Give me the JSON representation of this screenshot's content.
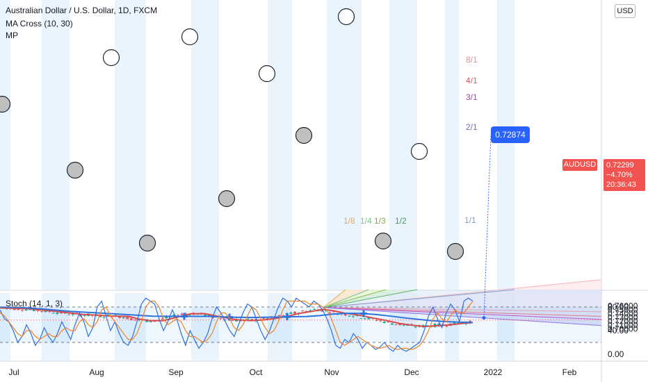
{
  "header": {
    "title": "Australian Dollar / U.S. Dollar, 1D, FXCM",
    "indicator_ma": "MA Cross (10, 30)",
    "indicator_mp": "MP",
    "currency_badge": "USD"
  },
  "stoch": {
    "label": "Stoch (14, 1, 3)",
    "upper": 80,
    "lower": 20
  },
  "quote": {
    "symbol": "AUDUSD",
    "price": "0.72299",
    "change": "−4.70%",
    "countdown": "20:36:43",
    "marker_price": "0.72874"
  },
  "colors": {
    "candle_up": "#26a69a",
    "candle_down": "#ef5350",
    "ma_fast": "#e8453c",
    "ma_slow": "#2f6fde",
    "stoch_k": "#2f6fde",
    "stoch_d": "#f0832a",
    "cross_marker": "#2f6fde"
  },
  "chart_data": [
    {
      "type": "candlestick",
      "title": "Australian Dollar / U.S. Dollar, 1D, FXCM",
      "y_ticks": [
        "0.76000",
        "0.75000",
        "0.74000",
        "0.73000",
        "0.72000",
        "0.71000",
        "0.70000"
      ],
      "x_ticks": [
        "Jul",
        "Aug",
        "Sep",
        "Oct",
        "Nov",
        "Dec",
        "2022",
        "Feb"
      ],
      "ylim": [
        0.6935,
        0.7624
      ],
      "last_price": 0.72299,
      "series": [
        {
          "name": "MA Cross (10, 30) fast",
          "points": [
            [
              0,
              0.7545
            ],
            [
              40,
              0.7525
            ],
            [
              80,
              0.7455
            ],
            [
              120,
              0.7375
            ],
            [
              160,
              0.7335
            ],
            [
              185,
              0.7325
            ],
            [
              200,
              0.7255
            ],
            [
              215,
              0.7215
            ],
            [
              235,
              0.7215
            ],
            [
              255,
              0.7305
            ],
            [
              275,
              0.7395
            ],
            [
              295,
              0.7395
            ],
            [
              315,
              0.732
            ],
            [
              340,
              0.724
            ],
            [
              360,
              0.7215
            ],
            [
              380,
              0.7235
            ],
            [
              400,
              0.728
            ],
            [
              415,
              0.7335
            ],
            [
              430,
              0.74
            ],
            [
              450,
              0.746
            ],
            [
              465,
              0.751
            ],
            [
              480,
              0.747
            ],
            [
              495,
              0.741
            ],
            [
              515,
              0.736
            ],
            [
              535,
              0.729
            ],
            [
              555,
              0.722
            ],
            [
              575,
              0.714
            ],
            [
              595,
              0.709
            ],
            [
              610,
              0.706
            ],
            [
              625,
              0.708
            ],
            [
              640,
              0.7095
            ],
            [
              655,
              0.712
            ],
            [
              670,
              0.715
            ],
            [
              680,
              0.7165
            ]
          ]
        },
        {
          "name": "MA Cross (10, 30) slow",
          "points": [
            [
              0,
              0.7565
            ],
            [
              30,
              0.7555
            ],
            [
              60,
              0.752
            ],
            [
              100,
              0.7455
            ],
            [
              140,
              0.7415
            ],
            [
              180,
              0.7375
            ],
            [
              220,
              0.733
            ],
            [
              250,
              0.7325
            ],
            [
              300,
              0.7325
            ],
            [
              330,
              0.7305
            ],
            [
              360,
              0.7295
            ],
            [
              390,
              0.7305
            ],
            [
              420,
              0.7315
            ],
            [
              440,
              0.732
            ],
            [
              460,
              0.7345
            ],
            [
              480,
              0.7385
            ],
            [
              500,
              0.7405
            ],
            [
              520,
              0.74
            ],
            [
              540,
              0.7375
            ],
            [
              560,
              0.7335
            ],
            [
              580,
              0.729
            ],
            [
              600,
              0.725
            ],
            [
              620,
              0.7215
            ],
            [
              640,
              0.719
            ],
            [
              660,
              0.7175
            ],
            [
              680,
              0.7165
            ]
          ]
        }
      ],
      "ma_cross_x": [
        265,
        330,
        413,
        523
      ],
      "gann_fan": {
        "origin": {
          "x": 465,
          "y": 0.7555
        },
        "upper_angles": [
          {
            "label": "8/1",
            "y_at_865": 0.7445
          },
          {
            "label": "4/1",
            "y_at_865": 0.7325
          },
          {
            "label": "3/1",
            "y_at_865": 0.7245
          },
          {
            "label": "2/1",
            "y_at_865": 0.7085
          }
        ],
        "lower_labels": [
          "1/1",
          "1/2",
          "1/3",
          "1/4",
          "1/8"
        ],
        "marker": {
          "x": 696,
          "y": 0.7287,
          "label": "0.72874"
        }
      },
      "bands_x": [
        [
          0,
          15
        ],
        [
          60,
          100
        ],
        [
          165,
          210
        ],
        [
          275,
          315
        ],
        [
          385,
          420
        ],
        [
          470,
          520
        ],
        [
          560,
          600
        ],
        [
          640,
          660
        ],
        [
          715,
          740
        ]
      ]
    },
    {
      "type": "line",
      "title": "Stoch (14, 1, 3)",
      "y_ticks": [
        "80.00",
        "40.00",
        "0.00"
      ],
      "ylim": [
        0,
        100
      ],
      "series": [
        {
          "name": "%K",
          "values": [
            75,
            60,
            55,
            40,
            20,
            30,
            50,
            35,
            15,
            25,
            45,
            30,
            20,
            35,
            55,
            40,
            25,
            50,
            70,
            55,
            30,
            45,
            80,
            90,
            65,
            40,
            55,
            35,
            20,
            15,
            30,
            55,
            85,
            95,
            90,
            85,
            60,
            40,
            55,
            75,
            60,
            35,
            15,
            40,
            25,
            10,
            20,
            35,
            60,
            80,
            70,
            55,
            40,
            30,
            50,
            70,
            85,
            80,
            60,
            40,
            25,
            40,
            60,
            80,
            95,
            90,
            80,
            95,
            90,
            85,
            80,
            90,
            85,
            75,
            60,
            40,
            15,
            10,
            25,
            20,
            35,
            25,
            10,
            20,
            15,
            8,
            12,
            20,
            10,
            5,
            15,
            8,
            5,
            10,
            15,
            20,
            40,
            65,
            80,
            60,
            45,
            70,
            85,
            75,
            55,
            90,
            95,
            90
          ]
        },
        {
          "name": "%D",
          "values": [
            70,
            65,
            55,
            45,
            35,
            30,
            40,
            40,
            30,
            25,
            30,
            35,
            30,
            30,
            40,
            45,
            40,
            40,
            55,
            60,
            50,
            45,
            55,
            75,
            80,
            65,
            55,
            45,
            35,
            25,
            25,
            35,
            55,
            80,
            90,
            90,
            80,
            60,
            50,
            55,
            60,
            55,
            40,
            30,
            30,
            25,
            20,
            25,
            35,
            55,
            70,
            70,
            60,
            45,
            40,
            50,
            65,
            80,
            75,
            60,
            45,
            35,
            40,
            55,
            75,
            90,
            90,
            90,
            90,
            90,
            85,
            85,
            85,
            80,
            75,
            60,
            40,
            20,
            15,
            20,
            25,
            30,
            25,
            20,
            15,
            12,
            10,
            12,
            15,
            10,
            8,
            10,
            10,
            8,
            10,
            15,
            25,
            40,
            60,
            70,
            60,
            55,
            65,
            75,
            70,
            70,
            80,
            90
          ]
        }
      ]
    }
  ],
  "x_axis": {
    "labels": [
      "Jul",
      "Aug",
      "Sep",
      "Oct",
      "Nov",
      "Dec",
      "2022",
      "Feb"
    ]
  }
}
